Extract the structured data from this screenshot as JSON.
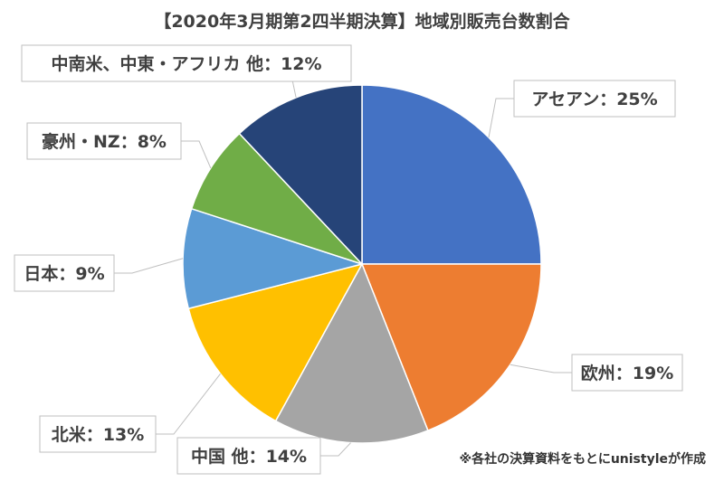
{
  "chart_data": {
    "type": "pie",
    "title": "【2020年3月期第2四半期決算】地域別販売台数割合",
    "slices": [
      {
        "name": "アセアン",
        "value": 25,
        "label": "アセアン：25%",
        "color": "#4472c4"
      },
      {
        "name": "欧州",
        "value": 19,
        "label": "欧州：19%",
        "color": "#ed7d31"
      },
      {
        "name": "中国 他",
        "value": 14,
        "label": "中国 他：14%",
        "color": "#a5a5a5"
      },
      {
        "name": "北米",
        "value": 13,
        "label": "北米：13%",
        "color": "#ffc000"
      },
      {
        "name": "日本",
        "value": 9,
        "label": "日本：9%",
        "color": "#5b9bd5"
      },
      {
        "name": "豪州・NZ",
        "value": 8,
        "label": "豪州・NZ：8%",
        "color": "#70ad47"
      },
      {
        "name": "中南米、中東・アフリカ 他",
        "value": 12,
        "label": "中南米、中東・アフリカ 他：12%",
        "color": "#264478"
      }
    ],
    "start_angle": "12 o'clock",
    "direction": "clockwise",
    "legend": "none"
  },
  "source_note": "※各社の決算資料をもとにunistyleが作成"
}
